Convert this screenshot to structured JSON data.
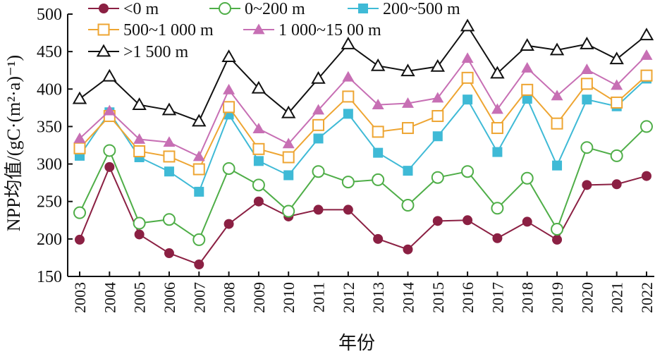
{
  "chart_data": {
    "type": "line",
    "title": "",
    "xlabel": "年份",
    "ylabel": "NPP均值/(gC·(m²·a)⁻¹)",
    "ylim": [
      150,
      500
    ],
    "yticks": [
      150,
      200,
      250,
      300,
      350,
      400,
      450,
      500
    ],
    "x": [
      "2003",
      "2004",
      "2005",
      "2006",
      "2007",
      "2008",
      "2009",
      "2010",
      "2011",
      "2012",
      "2013",
      "2014",
      "2015",
      "2016",
      "2017",
      "2018",
      "2019",
      "2020",
      "2021",
      "2022"
    ],
    "grid": false,
    "legend_position": "top-left",
    "series": [
      {
        "name": "<0 m",
        "color": "#8b2043",
        "marker": "filled-circle",
        "values": [
          199,
          296,
          206,
          181,
          166,
          220,
          250,
          230,
          239,
          239,
          200,
          186,
          224,
          225,
          201,
          223,
          199,
          272,
          273,
          284
        ]
      },
      {
        "name": "0~200 m",
        "color": "#4fae48",
        "marker": "open-circle",
        "values": [
          235,
          318,
          221,
          226,
          199,
          294,
          272,
          237,
          290,
          276,
          279,
          245,
          282,
          290,
          241,
          281,
          213,
          322,
          311,
          350
        ]
      },
      {
        "name": "200~500 m",
        "color": "#3fbad6",
        "marker": "filled-square",
        "values": [
          311,
          369,
          309,
          290,
          263,
          366,
          304,
          285,
          334,
          367,
          315,
          291,
          337,
          386,
          316,
          387,
          298,
          386,
          377,
          414
        ]
      },
      {
        "name": "500~1 000 m",
        "color": "#eea532",
        "marker": "open-square",
        "values": [
          321,
          364,
          317,
          310,
          293,
          376,
          320,
          309,
          352,
          390,
          343,
          348,
          364,
          415,
          348,
          399,
          354,
          407,
          382,
          418
        ]
      },
      {
        "name": "1 000~15 00 m",
        "color": "#c76fb4",
        "marker": "filled-triangle",
        "values": [
          334,
          371,
          333,
          329,
          310,
          399,
          347,
          327,
          372,
          416,
          379,
          381,
          388,
          441,
          373,
          428,
          391,
          426,
          405,
          445
        ]
      },
      {
        "name": ">1 500 m",
        "color": "#111111",
        "marker": "open-triangle",
        "values": [
          387,
          417,
          379,
          372,
          357,
          443,
          401,
          368,
          414,
          460,
          431,
          424,
          430,
          484,
          421,
          458,
          452,
          460,
          440,
          472
        ]
      }
    ]
  }
}
